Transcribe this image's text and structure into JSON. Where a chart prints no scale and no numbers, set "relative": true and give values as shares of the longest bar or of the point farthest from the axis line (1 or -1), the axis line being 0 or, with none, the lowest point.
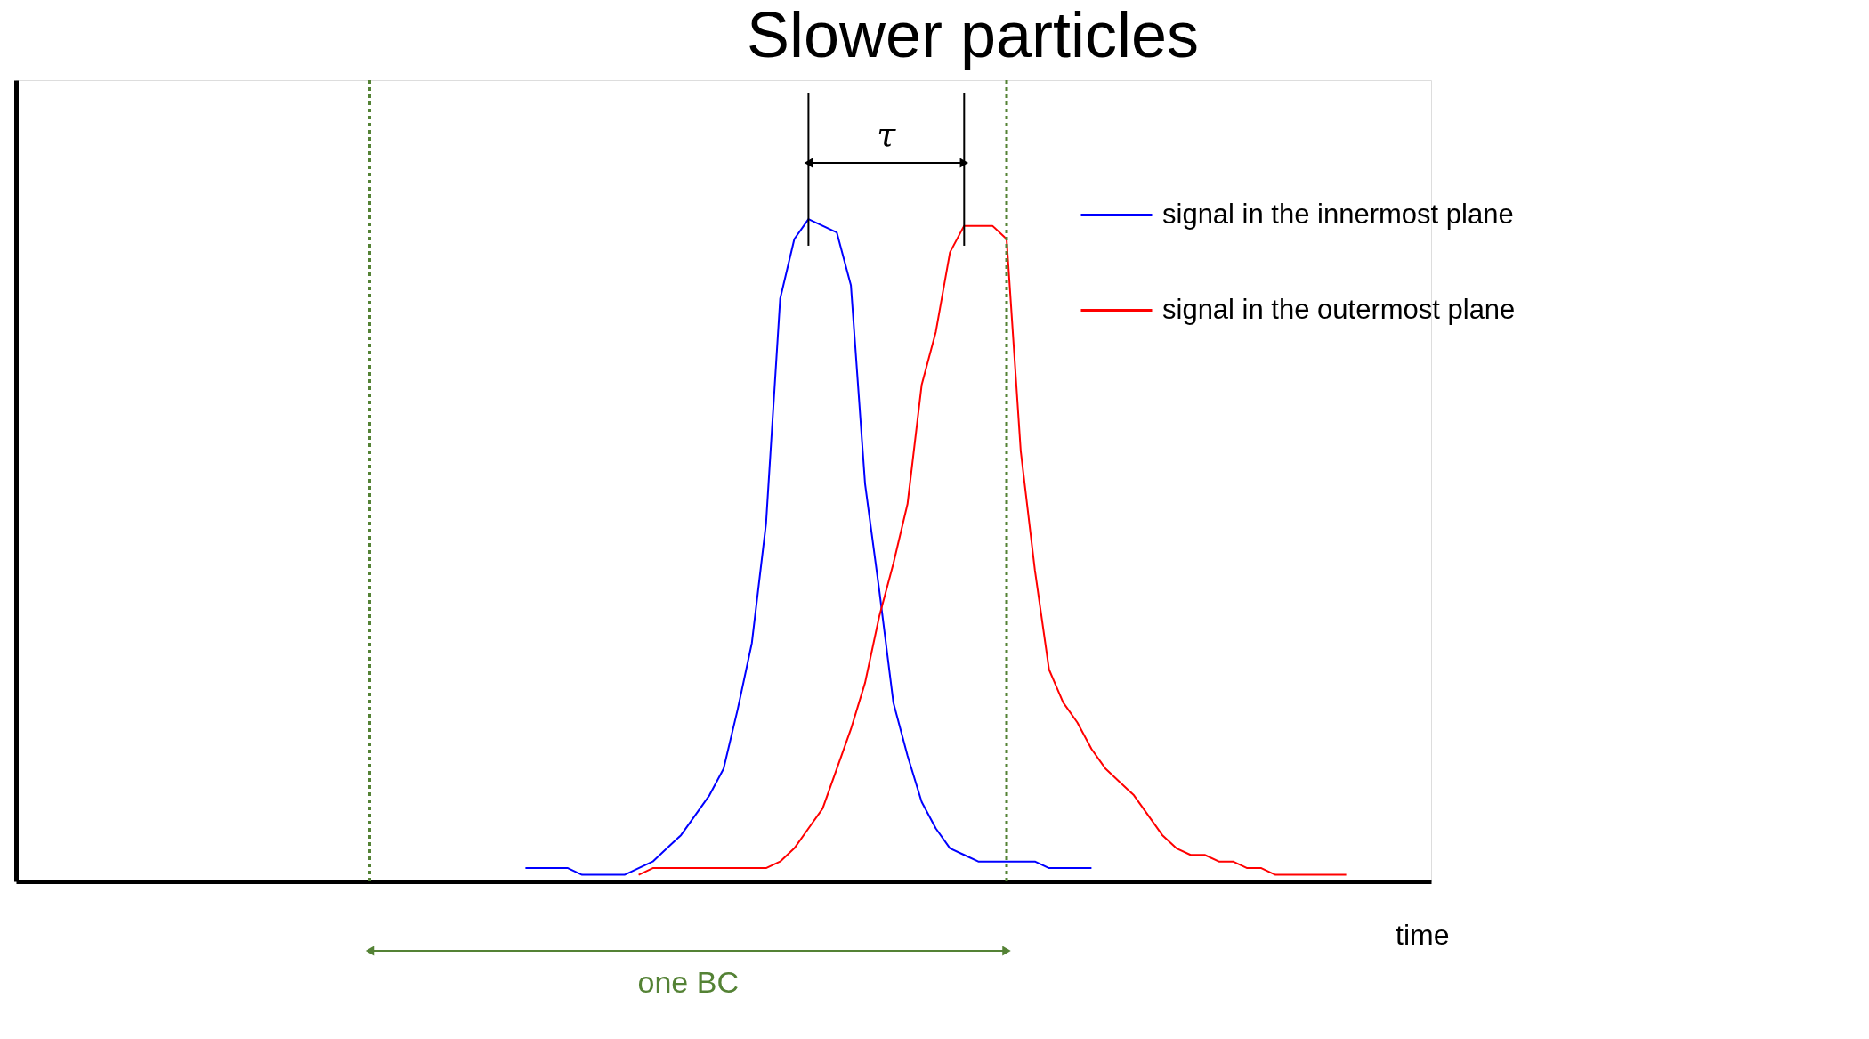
{
  "chart_data": {
    "type": "line",
    "title": "Slower particles",
    "xlabel": "time",
    "relative": true,
    "tick_labels": false,
    "grid": false,
    "legend": "top right",
    "line_style": "solid",
    "marker": "none",
    "categories": [
      null,
      null,
      null,
      null,
      null,
      null,
      null,
      null,
      null,
      null,
      null,
      null,
      null,
      null,
      null,
      null,
      null,
      null,
      null,
      null,
      null,
      null,
      null,
      null,
      null,
      null,
      null,
      null,
      null,
      null,
      null,
      null,
      null,
      null,
      null,
      null,
      null,
      null,
      null,
      null,
      null,
      null,
      null,
      null,
      null,
      null,
      null,
      null,
      null,
      null,
      null,
      null,
      null,
      null,
      null,
      null,
      null,
      null,
      null,
      null,
      null,
      null,
      null,
      null,
      null,
      null,
      null,
      null,
      null,
      null,
      null,
      null,
      null,
      null,
      null,
      null,
      null,
      null,
      null,
      null,
      null,
      null,
      null,
      null,
      null,
      null,
      null,
      null,
      null,
      null,
      null,
      null,
      null,
      null,
      null,
      null,
      null,
      null,
      null,
      null,
      null
    ],
    "series": [
      {
        "name": "signal in the innermost plane",
        "color": "#0000ff",
        "values": [
          null,
          null,
          null,
          null,
          null,
          null,
          null,
          null,
          null,
          null,
          null,
          null,
          null,
          null,
          null,
          null,
          null,
          null,
          null,
          null,
          null,
          null,
          null,
          null,
          null,
          null,
          null,
          null,
          null,
          null,
          null,
          null,
          null,
          null,
          null,
          null,
          0.02,
          0.02,
          0.02,
          0.02,
          0.01,
          0.01,
          0.01,
          0.01,
          0.02,
          0.03,
          0.05,
          0.07,
          0.1,
          0.13,
          0.17,
          0.26,
          0.36,
          0.54,
          0.88,
          0.97,
          1.0,
          0.99,
          0.98,
          0.9,
          0.6,
          0.44,
          0.27,
          0.19,
          0.12,
          0.08,
          0.05,
          0.04,
          0.03,
          0.03,
          0.03,
          0.03,
          0.03,
          0.02,
          0.02,
          0.02,
          0.02,
          null,
          null,
          null,
          null,
          null,
          null,
          null,
          null,
          null,
          null,
          null,
          null,
          null,
          null,
          null,
          null,
          null,
          null,
          null,
          null,
          null,
          null,
          null,
          null
        ]
      },
      {
        "name": "signal in the outermost plane",
        "color": "#ff0000",
        "values": [
          null,
          null,
          null,
          null,
          null,
          null,
          null,
          null,
          null,
          null,
          null,
          null,
          null,
          null,
          null,
          null,
          null,
          null,
          null,
          null,
          null,
          null,
          null,
          null,
          null,
          null,
          null,
          null,
          null,
          null,
          null,
          null,
          null,
          null,
          null,
          null,
          null,
          null,
          null,
          null,
          null,
          null,
          null,
          null,
          0.01,
          0.02,
          0.02,
          0.02,
          0.02,
          0.02,
          0.02,
          0.02,
          0.02,
          0.02,
          0.03,
          0.05,
          0.08,
          0.11,
          0.17,
          0.23,
          0.3,
          0.4,
          0.48,
          0.57,
          0.75,
          0.83,
          0.95,
          0.99,
          0.99,
          0.99,
          0.97,
          0.65,
          0.47,
          0.32,
          0.27,
          0.24,
          0.2,
          0.17,
          0.15,
          0.13,
          0.1,
          0.07,
          0.05,
          0.04,
          0.04,
          0.03,
          0.03,
          0.02,
          0.02,
          0.01,
          0.01,
          0.01,
          0.01,
          0.01,
          0.01,
          null,
          null,
          null,
          null,
          null,
          null
        ]
      }
    ],
    "annotations": [
      "τ",
      "one BC"
    ]
  }
}
